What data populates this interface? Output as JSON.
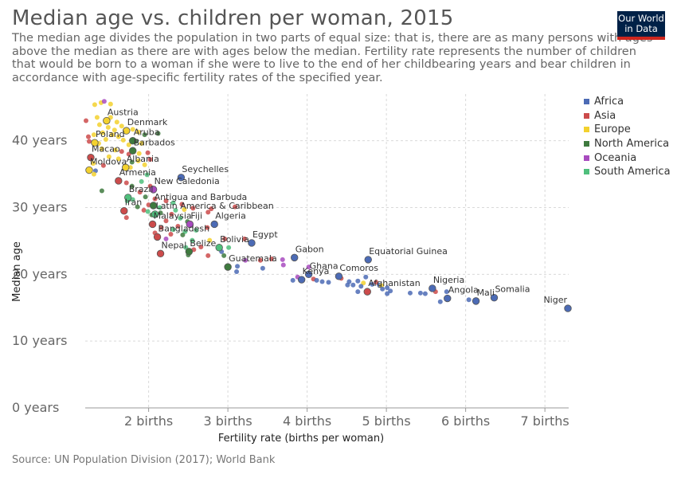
{
  "header": {
    "title": "Median age vs. children per woman, 2015",
    "subtitle": "The median age divides the population in two parts of equal size: that is, there are as many persons with ages above the median as there are with ages below the median. Fertility rate represents the number of children that would be born to a woman if she were to live to the end of her childbearing years and bear children in accordance with age-specific fertility rates of the specified year.",
    "logo_line1": "Our World",
    "logo_line2": "in Data"
  },
  "footer": {
    "source": "Source: UN Population Division (2017); World Bank"
  },
  "colors": {
    "Africa": "#4c6bb5",
    "Asia": "#cc4b4b",
    "Europe": "#f3d12e",
    "North America": "#3e7a3e",
    "Oceania": "#a84bbf",
    "South America": "#4fbf7c"
  },
  "chart_data": {
    "type": "scatter",
    "title": "Median age vs. children per woman, 2015",
    "xlabel": "Fertility rate (births per woman)",
    "ylabel": "Median age",
    "xlim": [
      1.2,
      7.3
    ],
    "ylim": [
      0,
      47
    ],
    "x_ticks": [
      2,
      3,
      4,
      5,
      6,
      7
    ],
    "x_tick_labels": [
      "2 births",
      "3 births",
      "4 births",
      "5 births",
      "6 births",
      "7 births"
    ],
    "y_ticks": [
      0,
      10,
      20,
      30,
      40
    ],
    "y_tick_labels": [
      "0 years",
      "10 years",
      "20 years",
      "30 years",
      "40 years"
    ],
    "grid": true,
    "legend_position": "right",
    "legend": [
      "Africa",
      "Asia",
      "Europe",
      "North America",
      "Oceania",
      "South America"
    ],
    "labeled_points": [
      {
        "label": "Austria",
        "x": 1.47,
        "y": 43.0,
        "region": "Europe"
      },
      {
        "label": "Denmark",
        "x": 1.72,
        "y": 41.5,
        "region": "Europe"
      },
      {
        "label": "Aruba",
        "x": 1.8,
        "y": 40.0,
        "region": "North America"
      },
      {
        "label": "Poland",
        "x": 1.32,
        "y": 39.7,
        "region": "Europe"
      },
      {
        "label": "Barbados",
        "x": 1.8,
        "y": 38.5,
        "region": "North America"
      },
      {
        "label": "Macao",
        "x": 1.27,
        "y": 37.5,
        "region": "Asia"
      },
      {
        "label": "Albania",
        "x": 1.71,
        "y": 36.0,
        "region": "Europe"
      },
      {
        "label": "Moldova",
        "x": 1.25,
        "y": 35.6,
        "region": "Europe"
      },
      {
        "label": "Seychelles",
        "x": 2.41,
        "y": 34.5,
        "region": "Africa"
      },
      {
        "label": "Armenia",
        "x": 1.62,
        "y": 34.0,
        "region": "Asia"
      },
      {
        "label": "New Caledonia",
        "x": 2.06,
        "y": 32.7,
        "region": "Oceania"
      },
      {
        "label": "Brazil",
        "x": 1.74,
        "y": 31.5,
        "region": "South America"
      },
      {
        "label": "Antigua and Barbuda",
        "x": 2.06,
        "y": 30.3,
        "region": "North America"
      },
      {
        "label": "Iran",
        "x": 1.69,
        "y": 29.5,
        "region": "Asia"
      },
      {
        "label": "Latin America & Caribbean",
        "x": 2.08,
        "y": 29.0,
        "region": "South America"
      },
      {
        "label": "Malaysia",
        "x": 2.05,
        "y": 27.5,
        "region": "Asia"
      },
      {
        "label": "Fiji",
        "x": 2.52,
        "y": 27.5,
        "region": "Oceania"
      },
      {
        "label": "Algeria",
        "x": 2.83,
        "y": 27.5,
        "region": "Africa"
      },
      {
        "label": "Bangladesh",
        "x": 2.11,
        "y": 25.6,
        "region": "Asia"
      },
      {
        "label": "Bolivia",
        "x": 2.89,
        "y": 24.0,
        "region": "South America"
      },
      {
        "label": "Egypt",
        "x": 3.3,
        "y": 24.7,
        "region": "Africa"
      },
      {
        "label": "Nepal",
        "x": 2.15,
        "y": 23.1,
        "region": "Asia"
      },
      {
        "label": "Belize",
        "x": 2.51,
        "y": 23.4,
        "region": "North America"
      },
      {
        "label": "Gabon",
        "x": 3.84,
        "y": 22.5,
        "region": "Africa"
      },
      {
        "label": "Equatorial Guinea",
        "x": 4.77,
        "y": 22.2,
        "region": "Africa"
      },
      {
        "label": "Guatemala",
        "x": 3.0,
        "y": 21.1,
        "region": "North America"
      },
      {
        "label": "Ghana",
        "x": 4.02,
        "y": 20.0,
        "region": "Africa"
      },
      {
        "label": "Comoros",
        "x": 4.4,
        "y": 19.7,
        "region": "Africa"
      },
      {
        "label": "Kenya",
        "x": 3.93,
        "y": 19.2,
        "region": "Africa"
      },
      {
        "label": "Afghanistan",
        "x": 4.76,
        "y": 17.4,
        "region": "Asia"
      },
      {
        "label": "Nigeria",
        "x": 5.58,
        "y": 17.9,
        "region": "Africa"
      },
      {
        "label": "Angola",
        "x": 5.77,
        "y": 16.4,
        "region": "Africa"
      },
      {
        "label": "Mali",
        "x": 6.13,
        "y": 16.0,
        "region": "Africa"
      },
      {
        "label": "Somalia",
        "x": 6.36,
        "y": 16.5,
        "region": "Africa"
      },
      {
        "label": "Niger",
        "x": 7.29,
        "y": 14.9,
        "region": "Africa"
      }
    ],
    "points": [
      {
        "x": 1.4,
        "y": 45.7,
        "region": "Europe"
      },
      {
        "x": 1.52,
        "y": 45.5,
        "region": "Europe"
      },
      {
        "x": 1.32,
        "y": 45.4,
        "region": "Europe"
      },
      {
        "x": 1.44,
        "y": 45.9,
        "region": "Oceania"
      },
      {
        "x": 1.21,
        "y": 43.0,
        "region": "Asia"
      },
      {
        "x": 1.35,
        "y": 43.5,
        "region": "Europe"
      },
      {
        "x": 1.52,
        "y": 43.5,
        "region": "Europe"
      },
      {
        "x": 1.6,
        "y": 42.8,
        "region": "Europe"
      },
      {
        "x": 1.38,
        "y": 42.4,
        "region": "Europe"
      },
      {
        "x": 1.66,
        "y": 42.2,
        "region": "Europe"
      },
      {
        "x": 1.49,
        "y": 42.0,
        "region": "Europe"
      },
      {
        "x": 1.57,
        "y": 41.6,
        "region": "Europe"
      },
      {
        "x": 1.42,
        "y": 41.2,
        "region": "Europe"
      },
      {
        "x": 1.8,
        "y": 41.7,
        "region": "Europe"
      },
      {
        "x": 1.87,
        "y": 41.3,
        "region": "Europe"
      },
      {
        "x": 1.54,
        "y": 40.9,
        "region": "Europe"
      },
      {
        "x": 1.31,
        "y": 40.9,
        "region": "Europe"
      },
      {
        "x": 1.62,
        "y": 40.6,
        "region": "Europe"
      },
      {
        "x": 1.24,
        "y": 40.6,
        "region": "Asia"
      },
      {
        "x": 1.25,
        "y": 39.9,
        "region": "Asia"
      },
      {
        "x": 1.46,
        "y": 40.2,
        "region": "Europe"
      },
      {
        "x": 1.68,
        "y": 40.1,
        "region": "Europe"
      },
      {
        "x": 1.95,
        "y": 40.9,
        "region": "North America"
      },
      {
        "x": 2.12,
        "y": 41.1,
        "region": "North America"
      },
      {
        "x": 1.37,
        "y": 39.6,
        "region": "Europe"
      },
      {
        "x": 1.75,
        "y": 39.4,
        "region": "Europe"
      },
      {
        "x": 1.91,
        "y": 39.6,
        "region": "Europe"
      },
      {
        "x": 1.84,
        "y": 39.9,
        "region": "North America"
      },
      {
        "x": 1.41,
        "y": 38.8,
        "region": "Europe"
      },
      {
        "x": 1.58,
        "y": 38.6,
        "region": "Europe"
      },
      {
        "x": 1.66,
        "y": 38.4,
        "region": "Asia"
      },
      {
        "x": 1.88,
        "y": 38.1,
        "region": "Europe"
      },
      {
        "x": 1.75,
        "y": 38.0,
        "region": "Asia"
      },
      {
        "x": 1.99,
        "y": 38.2,
        "region": "Asia"
      },
      {
        "x": 1.5,
        "y": 37.6,
        "region": "Europe"
      },
      {
        "x": 1.62,
        "y": 37.3,
        "region": "Europe"
      },
      {
        "x": 1.79,
        "y": 36.8,
        "region": "North America"
      },
      {
        "x": 1.87,
        "y": 37.0,
        "region": "Europe"
      },
      {
        "x": 1.95,
        "y": 36.4,
        "region": "Europe"
      },
      {
        "x": 2.02,
        "y": 37.2,
        "region": "Asia"
      },
      {
        "x": 1.43,
        "y": 36.3,
        "region": "Asia"
      },
      {
        "x": 1.3,
        "y": 36.6,
        "region": "Europe"
      },
      {
        "x": 1.77,
        "y": 36.0,
        "region": "Europe"
      },
      {
        "x": 1.33,
        "y": 35.5,
        "region": "Africa"
      },
      {
        "x": 1.31,
        "y": 35.0,
        "region": "Europe"
      },
      {
        "x": 1.98,
        "y": 34.9,
        "region": "South America"
      },
      {
        "x": 1.72,
        "y": 33.7,
        "region": "Asia"
      },
      {
        "x": 1.79,
        "y": 33.2,
        "region": "North America"
      },
      {
        "x": 1.91,
        "y": 33.9,
        "region": "South America"
      },
      {
        "x": 2.02,
        "y": 33.2,
        "region": "Asia"
      },
      {
        "x": 1.41,
        "y": 32.5,
        "region": "North America"
      },
      {
        "x": 1.89,
        "y": 32.3,
        "region": "Asia"
      },
      {
        "x": 2.06,
        "y": 32.5,
        "region": "Asia"
      },
      {
        "x": 1.96,
        "y": 31.6,
        "region": "North America"
      },
      {
        "x": 1.8,
        "y": 31.2,
        "region": "South America"
      },
      {
        "x": 1.73,
        "y": 31.0,
        "region": "South America"
      },
      {
        "x": 2.08,
        "y": 31.3,
        "region": "Asia"
      },
      {
        "x": 2.22,
        "y": 31.0,
        "region": "Asia"
      },
      {
        "x": 2.31,
        "y": 30.7,
        "region": "South America"
      },
      {
        "x": 2.0,
        "y": 30.4,
        "region": "Asia"
      },
      {
        "x": 1.86,
        "y": 30.1,
        "region": "North America"
      },
      {
        "x": 2.14,
        "y": 30.0,
        "region": "South America"
      },
      {
        "x": 2.42,
        "y": 30.5,
        "region": "Asia"
      },
      {
        "x": 1.94,
        "y": 29.6,
        "region": "Asia"
      },
      {
        "x": 2.34,
        "y": 29.6,
        "region": "South America"
      },
      {
        "x": 2.45,
        "y": 29.7,
        "region": "Europe"
      },
      {
        "x": 2.56,
        "y": 29.9,
        "region": "Asia"
      },
      {
        "x": 2.79,
        "y": 29.8,
        "region": "Asia"
      },
      {
        "x": 3.09,
        "y": 30.1,
        "region": "Asia"
      },
      {
        "x": 1.99,
        "y": 29.4,
        "region": "South America"
      },
      {
        "x": 2.15,
        "y": 29.2,
        "region": "North America"
      },
      {
        "x": 2.04,
        "y": 28.9,
        "region": "North America"
      },
      {
        "x": 2.29,
        "y": 29.0,
        "region": "Asia"
      },
      {
        "x": 2.75,
        "y": 29.3,
        "region": "Asia"
      },
      {
        "x": 1.72,
        "y": 28.5,
        "region": "Asia"
      },
      {
        "x": 2.4,
        "y": 28.4,
        "region": "South America"
      },
      {
        "x": 2.22,
        "y": 28.0,
        "region": "Asia"
      },
      {
        "x": 2.06,
        "y": 27.5,
        "region": "Asia"
      },
      {
        "x": 2.49,
        "y": 27.9,
        "region": "North America"
      },
      {
        "x": 2.37,
        "y": 27.2,
        "region": "Asia"
      },
      {
        "x": 2.16,
        "y": 27.0,
        "region": "Asia"
      },
      {
        "x": 2.84,
        "y": 27.5,
        "region": "Africa"
      },
      {
        "x": 2.53,
        "y": 27.5,
        "region": "Oceania"
      },
      {
        "x": 2.31,
        "y": 26.7,
        "region": "South America"
      },
      {
        "x": 2.46,
        "y": 26.4,
        "region": "South America"
      },
      {
        "x": 2.6,
        "y": 26.6,
        "region": "South America"
      },
      {
        "x": 2.74,
        "y": 27.0,
        "region": "Asia"
      },
      {
        "x": 2.08,
        "y": 26.2,
        "region": "Asia"
      },
      {
        "x": 2.28,
        "y": 26.0,
        "region": "Asia"
      },
      {
        "x": 2.43,
        "y": 25.9,
        "region": "North America"
      },
      {
        "x": 2.11,
        "y": 25.6,
        "region": "North America"
      },
      {
        "x": 2.22,
        "y": 25.3,
        "region": "Oceania"
      },
      {
        "x": 2.55,
        "y": 25.1,
        "region": "South America"
      },
      {
        "x": 2.77,
        "y": 25.1,
        "region": "Europe"
      },
      {
        "x": 2.96,
        "y": 25.3,
        "region": "Asia"
      },
      {
        "x": 3.21,
        "y": 25.3,
        "region": "Asia"
      },
      {
        "x": 2.89,
        "y": 24.2,
        "region": "North America"
      },
      {
        "x": 2.66,
        "y": 24.1,
        "region": "Asia"
      },
      {
        "x": 3.01,
        "y": 24.0,
        "region": "South America"
      },
      {
        "x": 2.47,
        "y": 24.0,
        "region": "South America"
      },
      {
        "x": 2.92,
        "y": 23.4,
        "region": "Africa"
      },
      {
        "x": 3.3,
        "y": 24.7,
        "region": "Africa"
      },
      {
        "x": 2.51,
        "y": 23.4,
        "region": "North America"
      },
      {
        "x": 2.57,
        "y": 23.7,
        "region": "Asia"
      },
      {
        "x": 2.16,
        "y": 23.2,
        "region": "Asia"
      },
      {
        "x": 2.5,
        "y": 22.9,
        "region": "North America"
      },
      {
        "x": 2.75,
        "y": 22.8,
        "region": "Asia"
      },
      {
        "x": 2.95,
        "y": 22.8,
        "region": "North America"
      },
      {
        "x": 3.22,
        "y": 22.1,
        "region": "Oceania"
      },
      {
        "x": 3.41,
        "y": 22.1,
        "region": "Asia"
      },
      {
        "x": 3.55,
        "y": 22.3,
        "region": "Asia"
      },
      {
        "x": 3.69,
        "y": 22.2,
        "region": "Oceania"
      },
      {
        "x": 3.7,
        "y": 21.4,
        "region": "Oceania"
      },
      {
        "x": 3.83,
        "y": 22.6,
        "region": "Africa"
      },
      {
        "x": 3.12,
        "y": 21.2,
        "region": "Africa"
      },
      {
        "x": 3.0,
        "y": 21.2,
        "region": "North America"
      },
      {
        "x": 3.44,
        "y": 20.9,
        "region": "Africa"
      },
      {
        "x": 3.11,
        "y": 20.4,
        "region": "Africa"
      },
      {
        "x": 4.02,
        "y": 21.1,
        "region": "Oceania"
      },
      {
        "x": 3.82,
        "y": 19.1,
        "region": "Africa"
      },
      {
        "x": 3.93,
        "y": 19.2,
        "region": "Africa"
      },
      {
        "x": 4.03,
        "y": 20.1,
        "region": "Africa"
      },
      {
        "x": 3.88,
        "y": 19.6,
        "region": "Oceania"
      },
      {
        "x": 4.08,
        "y": 19.3,
        "region": "Asia"
      },
      {
        "x": 4.12,
        "y": 19.1,
        "region": "Africa"
      },
      {
        "x": 4.19,
        "y": 18.9,
        "region": "Africa"
      },
      {
        "x": 4.27,
        "y": 18.8,
        "region": "Africa"
      },
      {
        "x": 4.43,
        "y": 19.4,
        "region": "Asia"
      },
      {
        "x": 4.53,
        "y": 18.9,
        "region": "Africa"
      },
      {
        "x": 4.64,
        "y": 19.0,
        "region": "Africa"
      },
      {
        "x": 4.71,
        "y": 18.7,
        "region": "Europe"
      },
      {
        "x": 4.51,
        "y": 18.4,
        "region": "Africa"
      },
      {
        "x": 4.58,
        "y": 18.4,
        "region": "Africa"
      },
      {
        "x": 4.68,
        "y": 18.2,
        "region": "Africa"
      },
      {
        "x": 4.74,
        "y": 19.6,
        "region": "Africa"
      },
      {
        "x": 4.82,
        "y": 18.5,
        "region": "Africa"
      },
      {
        "x": 4.87,
        "y": 18.8,
        "region": "Asia"
      },
      {
        "x": 4.91,
        "y": 18.4,
        "region": "Africa"
      },
      {
        "x": 4.94,
        "y": 18.3,
        "region": "Europe"
      },
      {
        "x": 5.01,
        "y": 18.0,
        "region": "Africa"
      },
      {
        "x": 4.64,
        "y": 17.4,
        "region": "Africa"
      },
      {
        "x": 4.76,
        "y": 17.4,
        "region": "Asia"
      },
      {
        "x": 5.05,
        "y": 17.5,
        "region": "Africa"
      },
      {
        "x": 5.01,
        "y": 17.1,
        "region": "Africa"
      },
      {
        "x": 4.95,
        "y": 17.8,
        "region": "Africa"
      },
      {
        "x": 5.3,
        "y": 17.2,
        "region": "Africa"
      },
      {
        "x": 5.43,
        "y": 17.2,
        "region": "Africa"
      },
      {
        "x": 5.49,
        "y": 17.1,
        "region": "Africa"
      },
      {
        "x": 5.59,
        "y": 18.0,
        "region": "Africa"
      },
      {
        "x": 5.62,
        "y": 17.4,
        "region": "Asia"
      },
      {
        "x": 5.76,
        "y": 17.4,
        "region": "Africa"
      },
      {
        "x": 5.77,
        "y": 16.4,
        "region": "Africa"
      },
      {
        "x": 5.68,
        "y": 15.9,
        "region": "Africa"
      },
      {
        "x": 6.04,
        "y": 16.2,
        "region": "Africa"
      },
      {
        "x": 6.13,
        "y": 16.0,
        "region": "Africa"
      },
      {
        "x": 6.36,
        "y": 16.6,
        "region": "Africa"
      },
      {
        "x": 7.29,
        "y": 15.0,
        "region": "Africa"
      }
    ]
  }
}
